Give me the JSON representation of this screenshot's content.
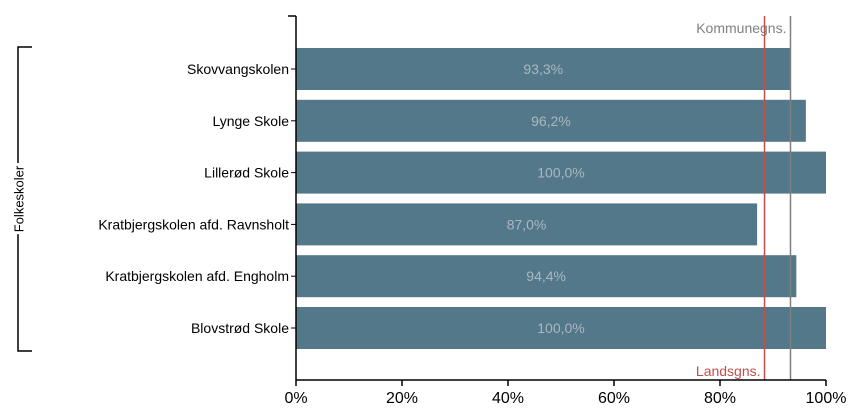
{
  "chart_data": {
    "type": "bar",
    "orientation": "horizontal",
    "group_label": "Folkeskoler",
    "categories": [
      "Skovvangskolen",
      "Lynge Skole",
      "Lillerød Skole",
      "Kratbjergskolen afd. Ravnsholt",
      "Kratbjergskolen afd. Engholm",
      "Blovstrød Skole"
    ],
    "values": [
      93.3,
      96.2,
      100.0,
      87.0,
      94.4,
      100.0
    ],
    "data_labels": [
      "93,3%",
      "96,2%",
      "100,0%",
      "87,0%",
      "94,4%",
      "100,0%"
    ],
    "xlim": [
      0,
      100
    ],
    "x_ticks": [
      0,
      20,
      40,
      60,
      80,
      100
    ],
    "x_tick_labels": [
      "0%",
      "20%",
      "40%",
      "60%",
      "80%",
      "100%"
    ],
    "reference_lines": [
      {
        "label": "Kommunegns.",
        "value": 93.3,
        "color": "#7f7f7f"
      },
      {
        "label": "Landsgns.",
        "value": 88.4,
        "color": "#c0504d"
      }
    ],
    "bar_color": "#53788a",
    "grid": false
  }
}
